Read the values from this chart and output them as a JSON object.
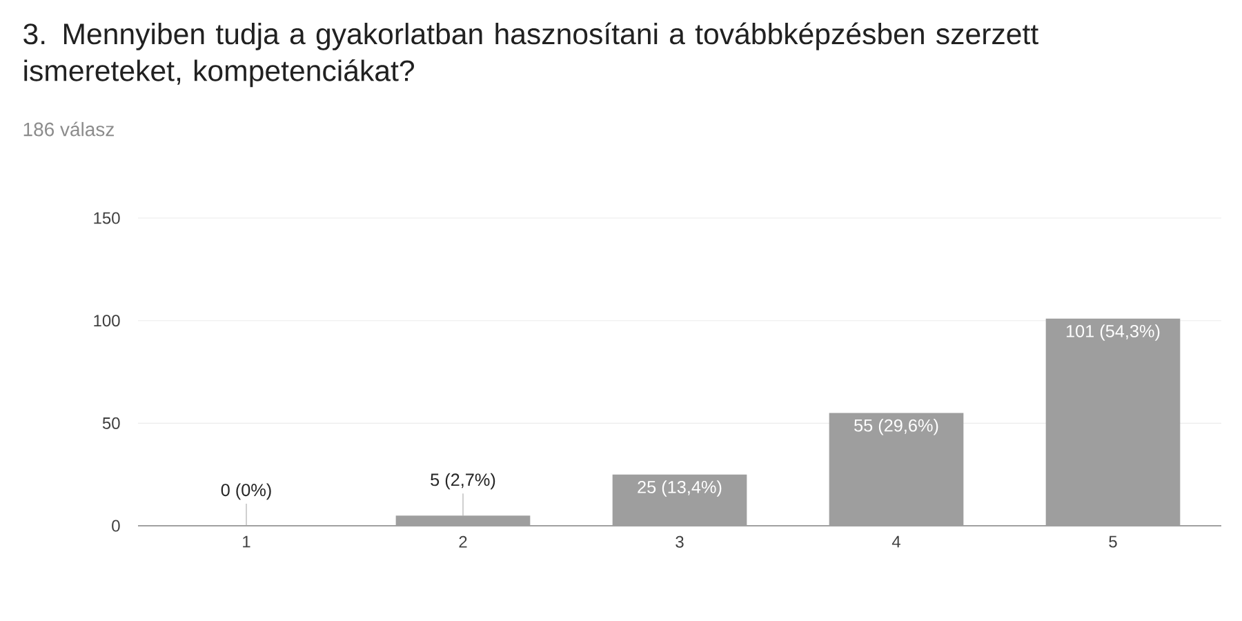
{
  "chart_data": {
    "type": "bar",
    "title": "3. Mennyiben tudja a gyakorlatban hasznosítani a továbbképzésben szerzett ismereteket, kompetenciákat?",
    "subtitle": "186 válasz",
    "categories": [
      "1",
      "2",
      "3",
      "4",
      "5"
    ],
    "values": [
      0,
      5,
      25,
      55,
      101
    ],
    "value_labels": [
      "0 (0%)",
      "5 (2,7%)",
      "25 (13,4%)",
      "55 (29,6%)",
      "101 (54,3%)"
    ],
    "color": "#9e9e9e",
    "ylim": [
      0,
      150
    ],
    "yticks": [
      0,
      50,
      100,
      150
    ],
    "grid": "y"
  }
}
